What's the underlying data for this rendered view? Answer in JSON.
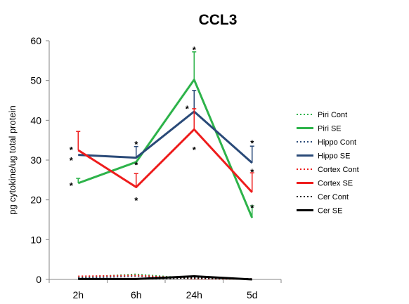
{
  "chart_data": {
    "type": "line",
    "title": "CCL3",
    "xlabel": "",
    "ylabel": "pg cytokine/ug total protein",
    "categories": [
      "2h",
      "6h",
      "24h",
      "5d"
    ],
    "ylim": [
      0,
      60
    ],
    "yticks": [
      0,
      10,
      20,
      30,
      40,
      50,
      60
    ],
    "grid": false,
    "legend_position": "right",
    "series": [
      {
        "name": "Piri Cont",
        "values": [
          0.5,
          1.3,
          0.2,
          0.1
        ],
        "errors": [
          0,
          0,
          0,
          0
        ],
        "color": "#2db34a",
        "dashed": true,
        "width": 2
      },
      {
        "name": "Piri SE",
        "values": [
          24.2,
          29.5,
          50.2,
          15.5
        ],
        "errors": [
          1.2,
          0,
          7.0,
          3.0
        ],
        "color": "#2db34a",
        "dashed": false,
        "width": 3
      },
      {
        "name": "Hippo Cont",
        "values": [
          0.4,
          0.8,
          0.3,
          0.1
        ],
        "errors": [
          0,
          0,
          0,
          0
        ],
        "color": "#2a4a78",
        "dashed": true,
        "width": 2
      },
      {
        "name": "Hippo SE",
        "values": [
          31.3,
          30.6,
          42.2,
          29.3
        ],
        "errors": [
          0,
          2.8,
          5.3,
          4.2
        ],
        "color": "#2a4a78",
        "dashed": false,
        "width": 3
      },
      {
        "name": "Cortex Cont",
        "values": [
          0.8,
          1.0,
          0.2,
          0.1
        ],
        "errors": [
          0,
          0,
          0,
          0
        ],
        "color": "#ee1c1c",
        "dashed": true,
        "width": 2
      },
      {
        "name": "Cortex SE",
        "values": [
          32.5,
          23.2,
          37.7,
          21.9
        ],
        "errors": [
          4.7,
          3.4,
          5.2,
          4.9
        ],
        "color": "#ee1c1c",
        "dashed": false,
        "width": 3
      },
      {
        "name": "Cer Cont",
        "values": [
          0.2,
          0.1,
          0.4,
          0.1
        ],
        "errors": [
          0,
          0,
          0,
          0
        ],
        "color": "#000000",
        "dashed": true,
        "width": 2
      },
      {
        "name": "Cer SE",
        "values": [
          0.1,
          0.1,
          0.8,
          0.0
        ],
        "errors": [
          0,
          0,
          0,
          0
        ],
        "color": "#000000",
        "dashed": false,
        "width": 3
      }
    ],
    "annotations": [
      {
        "text": "*",
        "category": "2h",
        "y": 24.2,
        "side": "left"
      },
      {
        "text": "*",
        "category": "2h",
        "y": 30.5,
        "side": "left"
      },
      {
        "text": "*",
        "category": "2h",
        "y": 33.2,
        "side": "left"
      },
      {
        "text": "*",
        "category": "6h",
        "y": 34.2,
        "side": "above"
      },
      {
        "text": "*",
        "category": "6h",
        "y": 29.0,
        "side": "above"
      },
      {
        "text": "*",
        "category": "6h",
        "y": 20.8,
        "side": "below"
      },
      {
        "text": "*",
        "category": "24h",
        "y": 58.0,
        "side": "above"
      },
      {
        "text": "*",
        "category": "24h",
        "y": 43.5,
        "side": "left"
      },
      {
        "text": "*",
        "category": "24h",
        "y": 33.5,
        "side": "below"
      },
      {
        "text": "*",
        "category": "5d",
        "y": 34.5,
        "side": "above"
      },
      {
        "text": "*",
        "category": "5d",
        "y": 28.0,
        "side": "below"
      },
      {
        "text": "*",
        "category": "5d",
        "y": 19.0,
        "side": "below"
      }
    ]
  }
}
